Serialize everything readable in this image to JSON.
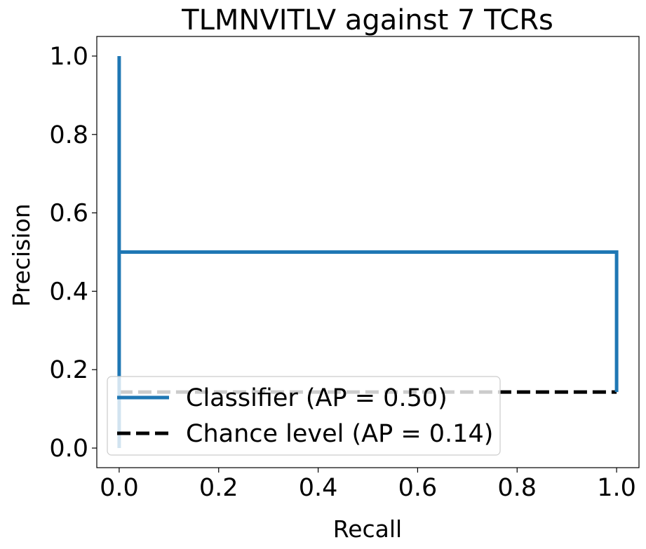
{
  "chart_data": {
    "type": "line",
    "title": "TLMNVITLV against 7 TCRs",
    "xlabel": "Recall",
    "ylabel": "Precision",
    "xlim": [
      -0.045,
      1.045
    ],
    "ylim": [
      -0.05,
      1.05
    ],
    "xticks": [
      0.0,
      0.2,
      0.4,
      0.6,
      0.8,
      1.0
    ],
    "yticks": [
      0.0,
      0.2,
      0.4,
      0.6,
      0.8,
      1.0
    ],
    "xtick_labels": [
      "0.0",
      "0.2",
      "0.4",
      "0.6",
      "0.8",
      "1.0"
    ],
    "ytick_labels": [
      "0.0",
      "0.2",
      "0.4",
      "0.6",
      "0.8",
      "1.0"
    ],
    "grid": false,
    "legend_position": "lower-left",
    "series": [
      {
        "name": "Classifier (AP = 0.50)",
        "style": "solid",
        "color": "#1f77b4",
        "x": [
          0.0,
          0.0,
          0.0,
          0.0,
          1.0,
          1.0
        ],
        "y": [
          0.0,
          0.143,
          0.5,
          1.0,
          0.5,
          0.143
        ],
        "path": [
          [
            0.0,
            1.0
          ],
          [
            0.0,
            0.0
          ],
          [
            0.0,
            0.5
          ],
          [
            1.0,
            0.5
          ],
          [
            1.0,
            0.143
          ]
        ]
      },
      {
        "name": "Chance level (AP = 0.14)",
        "style": "dashed",
        "color": "#000000",
        "x": [
          0.0,
          1.0
        ],
        "y": [
          0.143,
          0.143
        ]
      }
    ]
  }
}
